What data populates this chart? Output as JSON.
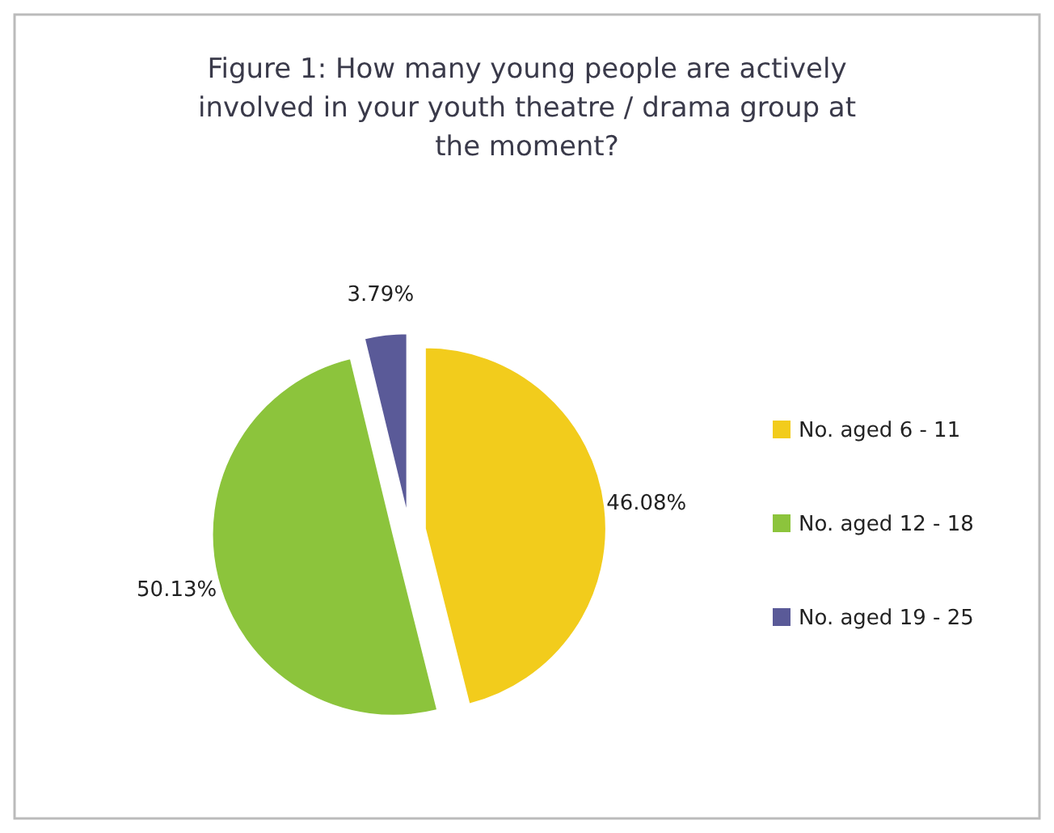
{
  "chart_data": {
    "type": "pie",
    "title": "Figure 1:  How many young people are actively involved in your youth theatre / drama group at the moment?",
    "categories": [
      "No. aged 6 - 11",
      "No. aged 12 - 18",
      "No. aged 19 - 25"
    ],
    "values": [
      46.08,
      50.13,
      3.79
    ],
    "colors": [
      "#f2cc1c",
      "#8cc43c",
      "#5a5a98"
    ],
    "value_labels": [
      "46.08%",
      "50.13%",
      "3.79%"
    ],
    "legend": "right"
  }
}
